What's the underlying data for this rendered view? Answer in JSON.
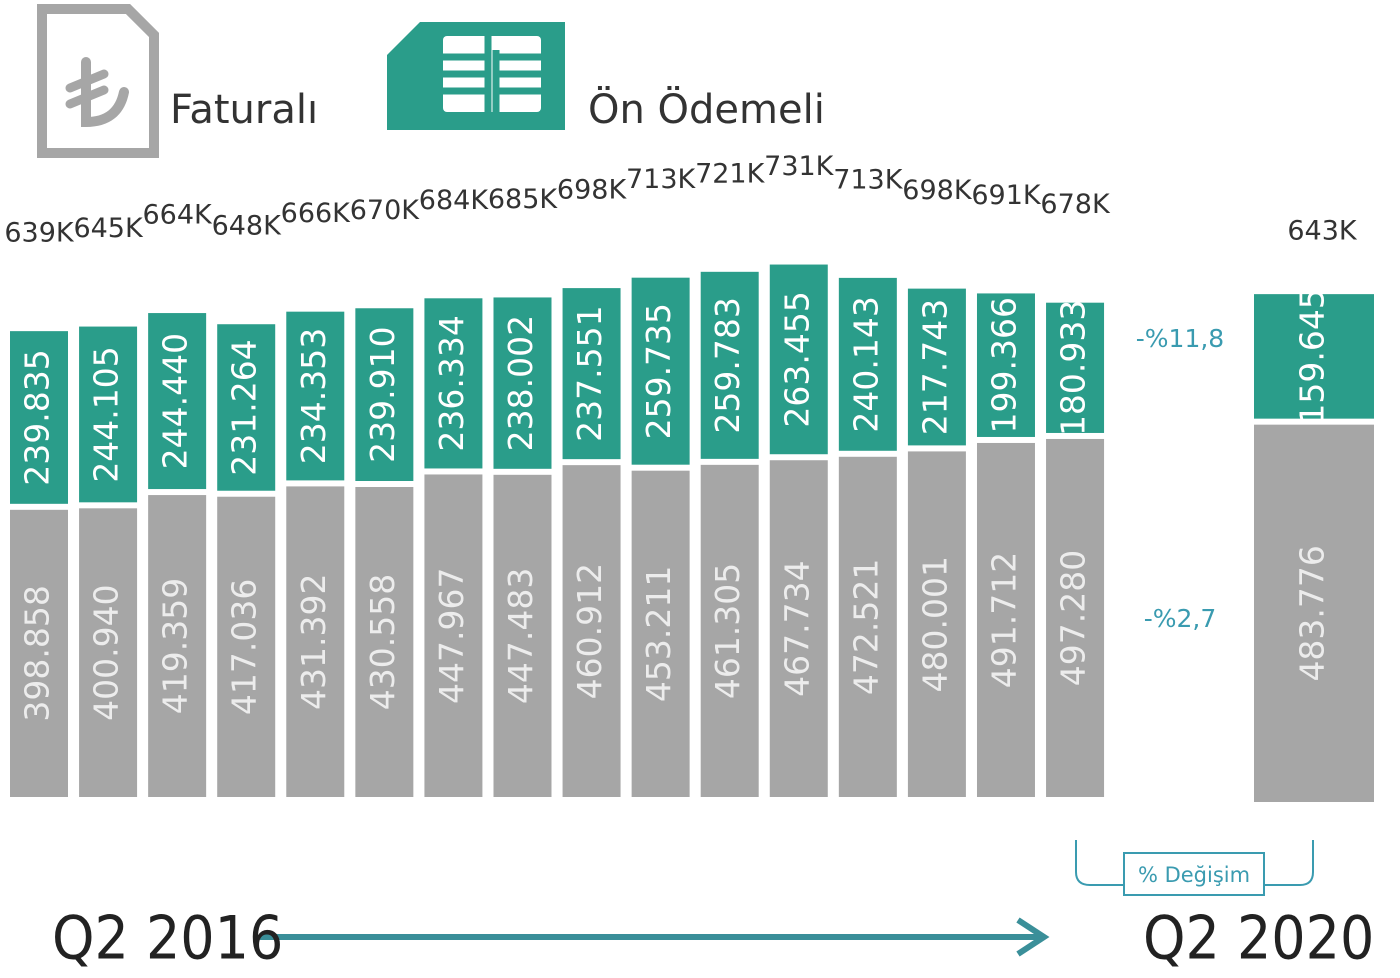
{
  "chart_data": {
    "type": "bar",
    "stacked": true,
    "categories": [
      "Q2 2016",
      null,
      null,
      null,
      null,
      null,
      null,
      null,
      null,
      null,
      null,
      null,
      null,
      null,
      null,
      null,
      "Q2 2020"
    ],
    "series": [
      {
        "name": "Faturalı",
        "color": "#a6a6a6",
        "values": [
          398858,
          400940,
          419359,
          417036,
          431392,
          430558,
          447967,
          447483,
          460912,
          453211,
          461305,
          467734,
          472521,
          480001,
          491712,
          497280,
          483776
        ],
        "value_labels": [
          "398.858",
          "400.940",
          "419.359",
          "417.036",
          "431.392",
          "430.558",
          "447.967",
          "447.483",
          "460.912",
          "453.211",
          "461.305",
          "467.734",
          "472.521",
          "480.001",
          "491.712",
          "497.280",
          "483.776"
        ]
      },
      {
        "name": "Ön Ödemeli",
        "color": "#2a9d8a",
        "values": [
          239835,
          244105,
          244440,
          231264,
          234353,
          239910,
          236334,
          238002,
          237551,
          259735,
          259783,
          263455,
          240143,
          217743,
          199366,
          180933,
          159645
        ],
        "value_labels": [
          "239.835",
          "244.105",
          "244.440",
          "231.264",
          "234.353",
          "239.910",
          "236.334",
          "238.002",
          "237.551",
          "259.735",
          "259.783",
          "263.455",
          "240.143",
          "217.743",
          "199.366",
          "180.933",
          "159.645"
        ]
      }
    ],
    "total_labels": [
      "639K",
      "645K",
      "664K",
      "648K",
      "666K",
      "670K",
      "684K",
      "685K",
      "698K",
      "713K",
      "721K",
      "731K",
      "713K",
      "698K",
      "691K",
      "678K",
      "643K"
    ],
    "changes": [
      "-%11,8",
      "-%2,7"
    ],
    "change_caption": "% Değişim"
  }
}
